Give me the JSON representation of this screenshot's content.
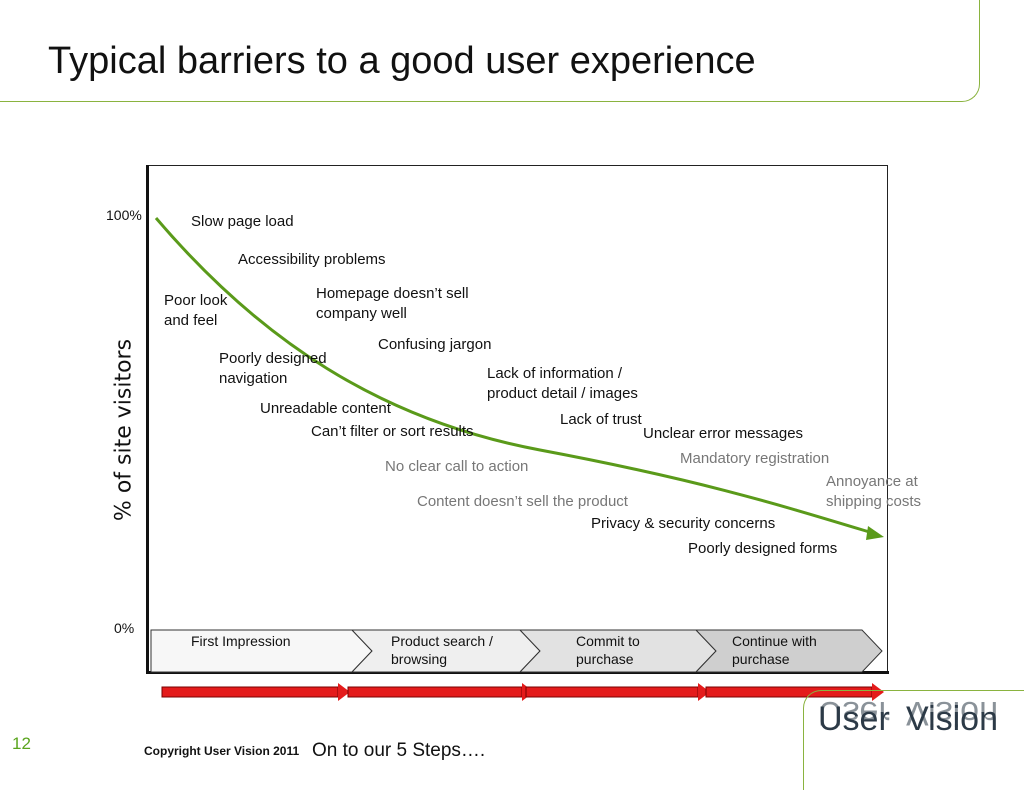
{
  "title": "Typical barriers to a good user experience",
  "y_axis": {
    "label": "% of site visitors",
    "top": "100%",
    "bottom": "0%"
  },
  "barriers": [
    {
      "text": "Slow page load"
    },
    {
      "text": "Accessibility problems"
    },
    {
      "text": "Poor look\nand feel"
    },
    {
      "text": "Homepage doesn’t sell\ncompany well"
    },
    {
      "text": "Confusing jargon"
    },
    {
      "text": "Poorly designed\nnavigation"
    },
    {
      "text": "Lack of information /\nproduct detail / images"
    },
    {
      "text": "Unreadable content"
    },
    {
      "text": "Lack of trust"
    },
    {
      "text": "Can’t filter or sort results"
    },
    {
      "text": "Unclear error messages"
    },
    {
      "text": "Mandatory registration",
      "muted": true
    },
    {
      "text": "No clear call to action",
      "muted": true
    },
    {
      "text": "Annoyance at\nshipping costs",
      "muted": true
    },
    {
      "text": "Content doesn’t sell the product",
      "muted": true
    },
    {
      "text": "Privacy & security concerns"
    },
    {
      "text": "Poorly designed forms"
    }
  ],
  "stages": [
    {
      "label": "First Impression",
      "fill": "#f7f7f7"
    },
    {
      "label": "Product search /\nbrowsing",
      "fill": "#efefef"
    },
    {
      "label": "Commit to\npurchase",
      "fill": "#e2e2e2"
    },
    {
      "label": "Continue with\npurchase",
      "fill": "#cfcfcf"
    }
  ],
  "colors": {
    "curve": "#5a9a1a",
    "arrows": "#e41b1b",
    "accent": "#8ab33f"
  },
  "footer": {
    "page_number": "12",
    "copyright": "Copyright User Vision 2011",
    "next": "On to our 5 Steps…."
  },
  "logo": {
    "word1": "User",
    "word2": "Vision"
  }
}
